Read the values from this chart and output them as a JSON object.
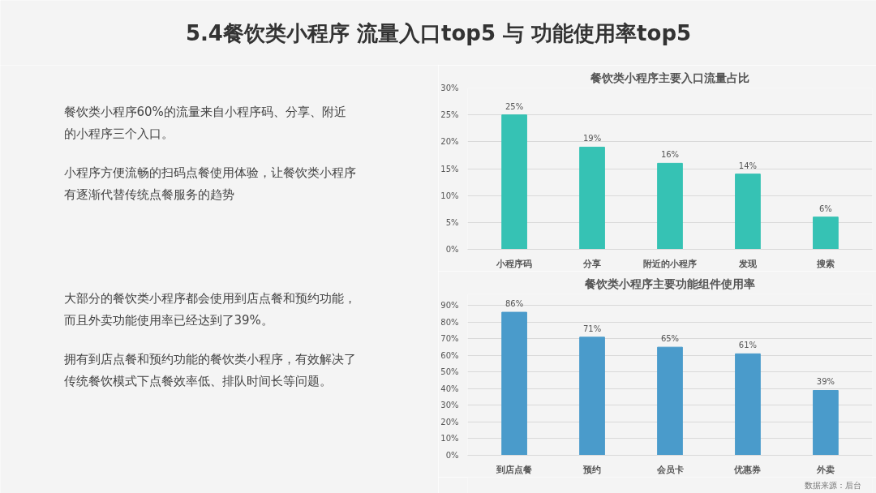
{
  "chart_data": [
    {
      "type": "other",
      "title": "5.4餐饮类小程序 流量入口top5 与 功能使用率top5",
      "annotations": [
        "餐饮类小程序60%的流量来自小程序码、分享、附近的小程序三个入口。",
        "小程序方便流畅的扫码点餐使用体验，让餐饮类小程序有逐渐代替传统点餐服务的趋势",
        "大部分的餐饮类小程序都会使用到店点餐和预约功能，而且外卖功能使用率已经达到了39%。",
        "拥有到店点餐和预约功能的餐饮类小程序，有效解决了传统餐饮模式下点餐效率低、排队时间长等问题。"
      ]
    },
    {
      "type": "bar",
      "title": "餐饮类小程序主要入口流量占比",
      "categories": [
        "小程序码",
        "分享",
        "附近的小程序",
        "发现",
        "搜索"
      ],
      "values": [
        25,
        19,
        16,
        14,
        6
      ],
      "color": "#36c2b4",
      "value_labels": [
        "25%",
        "19%",
        "16%",
        "14%",
        "6%"
      ],
      "ylim": [
        0,
        30
      ],
      "yticks": [
        {
          "value": 0,
          "label": "0%"
        },
        {
          "value": 5,
          "label": "5%"
        },
        {
          "value": 10,
          "label": "10%"
        },
        {
          "value": 15,
          "label": "15%"
        },
        {
          "value": 20,
          "label": "20%"
        },
        {
          "value": 25,
          "label": "25%"
        },
        {
          "value": 30,
          "label": "30%"
        }
      ],
      "grid": "y"
    },
    {
      "type": "bar",
      "title": "餐饮类小程序主要功能组件使用率",
      "categories": [
        "到店点餐",
        "预约",
        "会员卡",
        "优惠券",
        "外卖"
      ],
      "values": [
        86,
        71,
        65,
        61,
        39
      ],
      "color": "#4a9bcb",
      "value_labels": [
        "86%",
        "71%",
        "65%",
        "61%",
        "39%"
      ],
      "ylim": [
        0,
        97
      ],
      "yticks": [
        {
          "value": 0,
          "label": "0%"
        },
        {
          "value": 10,
          "label": "10%"
        },
        {
          "value": 20,
          "label": "20%"
        },
        {
          "value": 30,
          "label": "30%"
        },
        {
          "value": 40,
          "label": "40%"
        },
        {
          "value": 50,
          "label": "50%"
        },
        {
          "value": 60,
          "label": "60%"
        },
        {
          "value": 70,
          "label": "70%"
        },
        {
          "value": 80,
          "label": "80%"
        },
        {
          "value": 90,
          "label": "90%"
        }
      ],
      "grid": "y",
      "annotations": [
        "数据来源：后台"
      ]
    }
  ]
}
